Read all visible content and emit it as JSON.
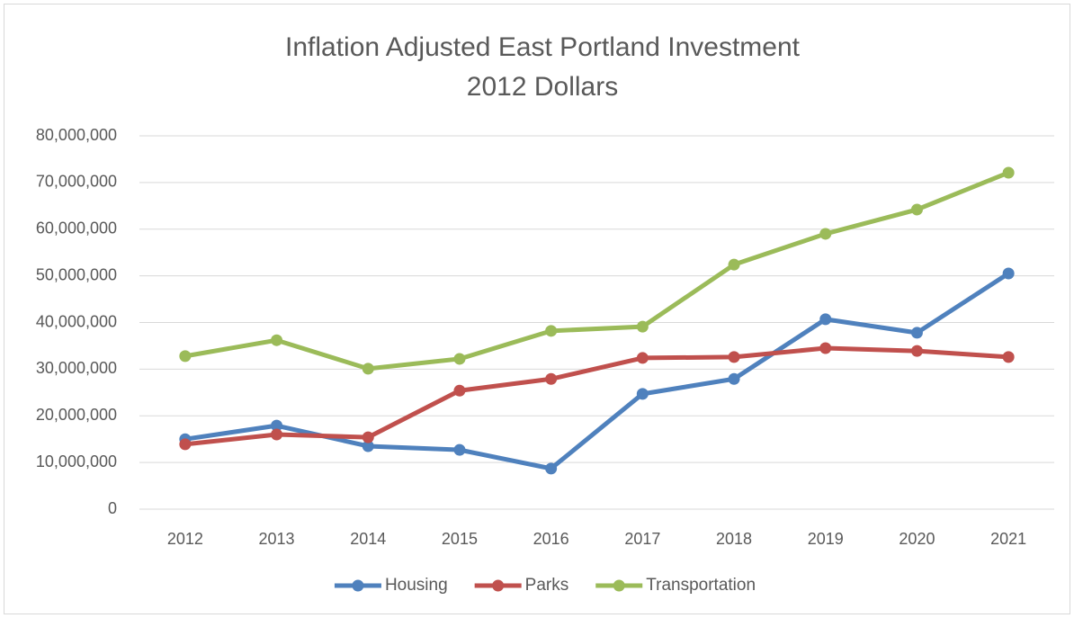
{
  "chart_data": {
    "type": "line",
    "title": "Inflation Adjusted East Portland Investment",
    "subtitle": "2012 Dollars",
    "categories": [
      "2012",
      "2013",
      "2014",
      "2015",
      "2016",
      "2017",
      "2018",
      "2019",
      "2020",
      "2021"
    ],
    "series": [
      {
        "name": "Housing",
        "color": "#4f81bd",
        "values": [
          15000000,
          17900000,
          13500000,
          12700000,
          8700000,
          24700000,
          27900000,
          40700000,
          37800000,
          50500000
        ]
      },
      {
        "name": "Parks",
        "color": "#c0504d",
        "values": [
          13900000,
          16000000,
          15400000,
          25400000,
          27900000,
          32400000,
          32600000,
          34500000,
          33900000,
          32600000
        ]
      },
      {
        "name": "Transportation",
        "color": "#9bbb59",
        "values": [
          32800000,
          36200000,
          30100000,
          32200000,
          38200000,
          39100000,
          52400000,
          59000000,
          64200000,
          72100000
        ]
      }
    ],
    "ylim": [
      0,
      80000000
    ],
    "yticks": [
      0,
      {
        "value": 10000000,
        "label": "10,000,000"
      },
      {
        "value": 20000000,
        "label": "20,000,000"
      },
      {
        "value": 30000000,
        "label": "30,000,000"
      },
      {
        "value": 40000000,
        "label": "40,000,000"
      },
      {
        "value": 50000000,
        "label": "50,000,000"
      },
      {
        "value": 60000000,
        "label": "60,000,000"
      },
      {
        "value": 70000000,
        "label": "70,000,000"
      },
      {
        "value": 80000000,
        "label": "80,000,000"
      }
    ],
    "grid": true,
    "legend": "bottom"
  }
}
